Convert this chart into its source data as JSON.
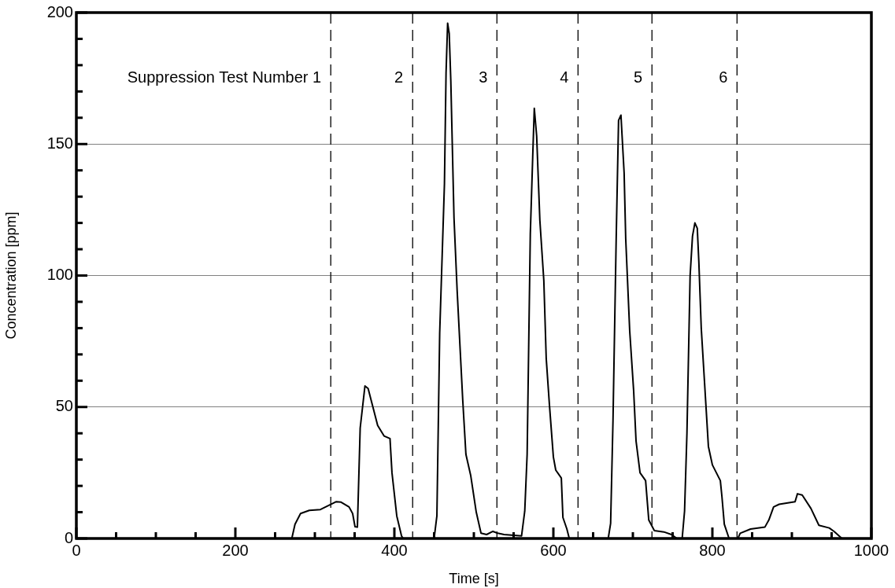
{
  "chart_data": {
    "type": "line",
    "xlabel": "Time [s]",
    "ylabel": "Concentration [ppm]",
    "series": [
      {
        "color": "#000000",
        "x": [
          0,
          271,
          275,
          282,
          293,
          307,
          317,
          327,
          333,
          343,
          347.5,
          350.5,
          353.5,
          357,
          363,
          367,
          373,
          379,
          387,
          394.5,
          397,
          403,
          409,
          411,
          450,
          453.5,
          457,
          463,
          465,
          467,
          469,
          471,
          475,
          479,
          486,
          490,
          496,
          503,
          509,
          516,
          524,
          530,
          538,
          560,
          564,
          567,
          571,
          574,
          576,
          579,
          583,
          588,
          591,
          595,
          600,
          603,
          610,
          612,
          617,
          620,
          669,
          672,
          675,
          679,
          682,
          685,
          689,
          691,
          696,
          701,
          704,
          709,
          716,
          720,
          727,
          739,
          748.5,
          755.5,
          762,
          765,
          768,
          772,
          775,
          778,
          781,
          783,
          786,
          790,
          795,
          800,
          805,
          810,
          812,
          815,
          821,
          832,
          835,
          848,
          866,
          871,
          877,
          884,
          904,
          907,
          913,
          924,
          934,
          947,
          953,
          963
        ],
        "values": [
          0,
          0,
          5.4,
          9.5,
          10.7,
          11,
          12.5,
          14,
          13.8,
          12,
          9.5,
          4.5,
          4.3,
          42,
          58,
          57,
          50,
          43,
          39,
          38,
          25,
          8.6,
          1,
          0,
          0,
          8.6,
          78,
          135,
          177,
          196,
          192,
          174,
          122,
          94,
          52.6,
          32,
          24,
          10,
          2,
          1.5,
          2.7,
          2,
          1.5,
          1,
          10.4,
          32,
          116,
          145,
          163.6,
          153,
          121,
          98,
          68.5,
          51,
          31,
          26,
          23,
          8,
          3.6,
          0,
          0,
          5.7,
          45,
          114,
          159,
          161,
          139,
          114,
          79,
          56,
          37,
          25,
          22,
          7,
          3,
          2.5,
          1.5,
          0,
          0,
          10.4,
          40,
          100,
          115,
          120,
          118,
          105,
          80,
          60,
          35,
          28,
          25,
          22,
          16,
          5.4,
          0,
          0,
          2,
          3.6,
          4.3,
          7,
          12,
          13,
          14,
          17,
          16.5,
          11.4,
          5,
          4,
          2.7,
          0
        ]
      }
    ],
    "xlim": [
      0,
      1000
    ],
    "ylim": [
      0,
      200
    ],
    "xticks": [
      0,
      {
        "value": 50,
        "label": null
      },
      {
        "value": 100,
        "label": null
      },
      {
        "value": 150,
        "label": null
      },
      200,
      {
        "value": 250,
        "label": null
      },
      {
        "value": 300,
        "label": null
      },
      {
        "value": 350,
        "label": null
      },
      400,
      {
        "value": 450,
        "label": null
      },
      {
        "value": 500,
        "label": null
      },
      {
        "value": 550,
        "label": null
      },
      600,
      {
        "value": 650,
        "label": null
      },
      {
        "value": 700,
        "label": null
      },
      {
        "value": 750,
        "label": null
      },
      800,
      {
        "value": 850,
        "label": null
      },
      {
        "value": 900,
        "label": null
      },
      {
        "value": 950,
        "label": null
      },
      1000
    ],
    "yticks": [
      0,
      {
        "value": 10,
        "label": null
      },
      {
        "value": 20,
        "label": null
      },
      {
        "value": 30,
        "label": null
      },
      {
        "value": 40,
        "label": null
      },
      50,
      {
        "value": 60,
        "label": null
      },
      {
        "value": 70,
        "label": null
      },
      {
        "value": 80,
        "label": null
      },
      {
        "value": 90,
        "label": null
      },
      100,
      {
        "value": 110,
        "label": null
      },
      {
        "value": 120,
        "label": null
      },
      {
        "value": 130,
        "label": null
      },
      {
        "value": 140,
        "label": null
      },
      150,
      {
        "value": 160,
        "label": null
      },
      {
        "value": 170,
        "label": null
      },
      {
        "value": 180,
        "label": null
      },
      {
        "value": 190,
        "label": null
      },
      200
    ],
    "grid": "y",
    "legend": false,
    "marker": "none",
    "line_style": "solid",
    "annotations": [
      "Suppression Test Number 1",
      "2",
      "3",
      "4",
      "5",
      "6"
    ],
    "ref_lines": [
      {
        "axis": "x",
        "value": 320,
        "line_style": "dashed",
        "color": "#000000"
      },
      {
        "axis": "x",
        "value": 423,
        "line_style": "dashed",
        "color": "#000000"
      },
      {
        "axis": "x",
        "value": 529,
        "line_style": "dashed",
        "color": "#000000"
      },
      {
        "axis": "x",
        "value": 631,
        "line_style": "dashed",
        "color": "#000000"
      },
      {
        "axis": "x",
        "value": 724,
        "line_style": "dashed",
        "color": "#000000"
      },
      {
        "axis": "x",
        "value": 831,
        "line_style": "dashed",
        "color": "#000000"
      }
    ]
  }
}
